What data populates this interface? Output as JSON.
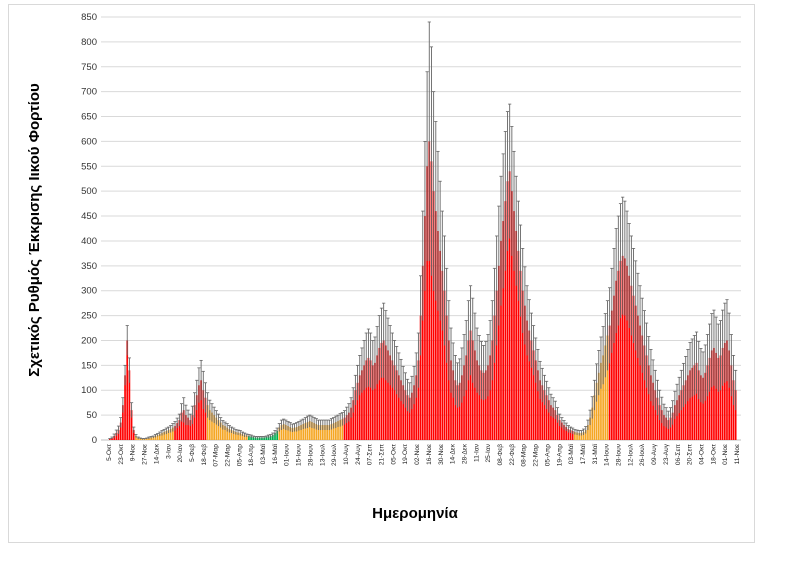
{
  "chart_data": {
    "type": "bar",
    "ylabel": "Σχετικός Ρυθμός Έκκρισης Ιικού Φορτίου",
    "xlabel": "Ημερομηνία",
    "ylim": [
      0,
      850
    ],
    "yticks": [
      0,
      50,
      100,
      150,
      200,
      250,
      300,
      350,
      400,
      450,
      500,
      550,
      600,
      650,
      700,
      750,
      800,
      850
    ],
    "grid": "horizontal",
    "colors": {
      "red": "#ff0000",
      "orange": "#f5a623",
      "green": "#00b050",
      "error": "#666666",
      "grid": "#d9d9d9"
    },
    "x_tick_labels": [
      "5-Οκτ",
      "23-Οκτ",
      "9-Νοε",
      "27-Νοε",
      "14-Δεκ",
      "3-Ιαν",
      "20-Ιαν",
      "5-Φεβ",
      "18-Φεβ",
      "07-Μαρ",
      "22-Μαρ",
      "05-Απρ",
      "18-Απρ",
      "03-Μαϊ",
      "16-Μαϊ",
      "01-Ιουν",
      "15-Ιουν",
      "28-Ιουν",
      "13-Ιουλ",
      "29-Ιουλ",
      "10-Αυγ",
      "24-Αυγ",
      "07-Σεπ",
      "21-Σεπ",
      "05-Οκτ",
      "19-Οκτ",
      "02-Νοε",
      "16-Νοε",
      "30-Νοε",
      "14-Δεκ",
      "28-Δεκ",
      "11-Ιαν",
      "25-Ιαν",
      "08-Φεβ",
      "22-Φεβ",
      "08-Μαρ",
      "22-Μαρ",
      "05-Απρ",
      "19-Απρ",
      "03-Μαϊ",
      "17-Μαϊ",
      "31-Μαϊ",
      "14-Ιουν",
      "28-Ιουν",
      "12-Ιουλ",
      "26-Ιουλ",
      "09-Αυγ",
      "23-Αυγ",
      "06-Σεπ",
      "20-Σεπ",
      "04-Οκτ",
      "18-Οκτ",
      "01-Νοε",
      "11-Νοε"
    ],
    "values": [
      2,
      4,
      8,
      14,
      20,
      35,
      70,
      130,
      200,
      140,
      60,
      20,
      8,
      4,
      3,
      2,
      2,
      3,
      4,
      5,
      6,
      8,
      10,
      12,
      14,
      16,
      18,
      20,
      22,
      25,
      28,
      34,
      40,
      55,
      60,
      50,
      45,
      40,
      50,
      70,
      90,
      110,
      120,
      100,
      85,
      70,
      60,
      55,
      50,
      45,
      40,
      35,
      30,
      28,
      25,
      22,
      20,
      18,
      16,
      15,
      14,
      12,
      10,
      9,
      8,
      7,
      6,
      5,
      5,
      5,
      5,
      5,
      6,
      7,
      8,
      10,
      14,
      18,
      25,
      30,
      32,
      30,
      28,
      26,
      24,
      25,
      26,
      28,
      30,
      32,
      34,
      36,
      38,
      36,
      34,
      32,
      30,
      30,
      30,
      30,
      30,
      30,
      32,
      34,
      36,
      38,
      40,
      42,
      45,
      50,
      55,
      65,
      80,
      100,
      115,
      130,
      140,
      150,
      160,
      165,
      160,
      150,
      155,
      170,
      185,
      195,
      200,
      190,
      180,
      170,
      160,
      150,
      140,
      130,
      120,
      110,
      100,
      90,
      85,
      95,
      110,
      130,
      160,
      250,
      350,
      450,
      550,
      600,
      560,
      500,
      460,
      420,
      380,
      340,
      300,
      250,
      200,
      160,
      140,
      120,
      110,
      115,
      130,
      150,
      170,
      200,
      220,
      200,
      180,
      160,
      150,
      140,
      135,
      140,
      150,
      170,
      200,
      250,
      300,
      350,
      400,
      440,
      480,
      520,
      540,
      500,
      460,
      420,
      380,
      340,
      300,
      270,
      240,
      220,
      200,
      180,
      160,
      140,
      120,
      110,
      100,
      90,
      80,
      70,
      65,
      60,
      50,
      40,
      35,
      30,
      26,
      22,
      20,
      18,
      16,
      15,
      14,
      14,
      16,
      20,
      30,
      45,
      65,
      90,
      115,
      135,
      155,
      170,
      190,
      210,
      230,
      260,
      290,
      320,
      340,
      360,
      370,
      365,
      350,
      330,
      310,
      290,
      270,
      250,
      230,
      210,
      190,
      170,
      150,
      130,
      115,
      100,
      85,
      70,
      60,
      50,
      45,
      40,
      45,
      55,
      70,
      80,
      90,
      100,
      110,
      120,
      130,
      140,
      145,
      150,
      155,
      140,
      130,
      125,
      135,
      150,
      165,
      180,
      185,
      175,
      165,
      170,
      185,
      195,
      200,
      180,
      150,
      120,
      100
    ],
    "errors": [
      1,
      2,
      4,
      6,
      8,
      10,
      15,
      20,
      30,
      25,
      15,
      6,
      3,
      2,
      1,
      1,
      1,
      1,
      2,
      2,
      2,
      3,
      3,
      4,
      5,
      5,
      6,
      6,
      7,
      8,
      9,
      10,
      12,
      18,
      25,
      20,
      15,
      12,
      18,
      25,
      30,
      35,
      40,
      38,
      30,
      25,
      20,
      18,
      16,
      14,
      12,
      10,
      9,
      8,
      8,
      7,
      6,
      6,
      5,
      5,
      5,
      4,
      4,
      3,
      3,
      3,
      2,
      2,
      2,
      2,
      2,
      2,
      2,
      3,
      3,
      4,
      5,
      6,
      8,
      10,
      10,
      10,
      9,
      9,
      8,
      8,
      9,
      9,
      10,
      10,
      11,
      12,
      12,
      12,
      11,
      11,
      10,
      10,
      10,
      10,
      10,
      10,
      11,
      11,
      12,
      12,
      13,
      13,
      14,
      16,
      18,
      20,
      25,
      30,
      35,
      40,
      45,
      50,
      55,
      58,
      55,
      50,
      52,
      58,
      65,
      70,
      75,
      70,
      65,
      60,
      55,
      50,
      48,
      45,
      42,
      38,
      35,
      32,
      30,
      33,
      38,
      45,
      55,
      80,
      110,
      150,
      190,
      240,
      230,
      200,
      180,
      160,
      140,
      120,
      110,
      95,
      80,
      65,
      55,
      50,
      45,
      48,
      55,
      62,
      70,
      80,
      90,
      85,
      75,
      65,
      60,
      58,
      55,
      58,
      62,
      70,
      80,
      95,
      110,
      120,
      130,
      135,
      140,
      140,
      135,
      130,
      120,
      110,
      100,
      92,
      85,
      78,
      70,
      62,
      55,
      50,
      45,
      42,
      38,
      34,
      30,
      28,
      25,
      22,
      20,
      18,
      15,
      12,
      10,
      9,
      8,
      7,
      6,
      6,
      5,
      5,
      5,
      5,
      6,
      7,
      10,
      15,
      22,
      30,
      38,
      45,
      52,
      58,
      64,
      70,
      76,
      85,
      95,
      105,
      110,
      115,
      118,
      115,
      110,
      105,
      100,
      95,
      90,
      85,
      80,
      75,
      70,
      65,
      58,
      52,
      46,
      40,
      35,
      30,
      26,
      22,
      20,
      18,
      20,
      24,
      28,
      32,
      36,
      40,
      44,
      48,
      52,
      56,
      58,
      60,
      62,
      58,
      54,
      52,
      56,
      62,
      68,
      74,
      76,
      72,
      68,
      70,
      76,
      80,
      82,
      75,
      62,
      50,
      40
    ],
    "series_color_ranges": [
      {
        "from": 0,
        "to": 11,
        "color": "red"
      },
      {
        "from": 12,
        "to": 29,
        "color": "orange"
      },
      {
        "from": 30,
        "to": 44,
        "color": "red"
      },
      {
        "from": 45,
        "to": 63,
        "color": "orange"
      },
      {
        "from": 64,
        "to": 77,
        "color": "green"
      },
      {
        "from": 78,
        "to": 107,
        "color": "orange"
      },
      {
        "from": 108,
        "to": 213,
        "color": "red"
      },
      {
        "from": 214,
        "to": 229,
        "color": "orange"
      },
      {
        "from": 230,
        "to": 304,
        "color": "red"
      }
    ]
  }
}
